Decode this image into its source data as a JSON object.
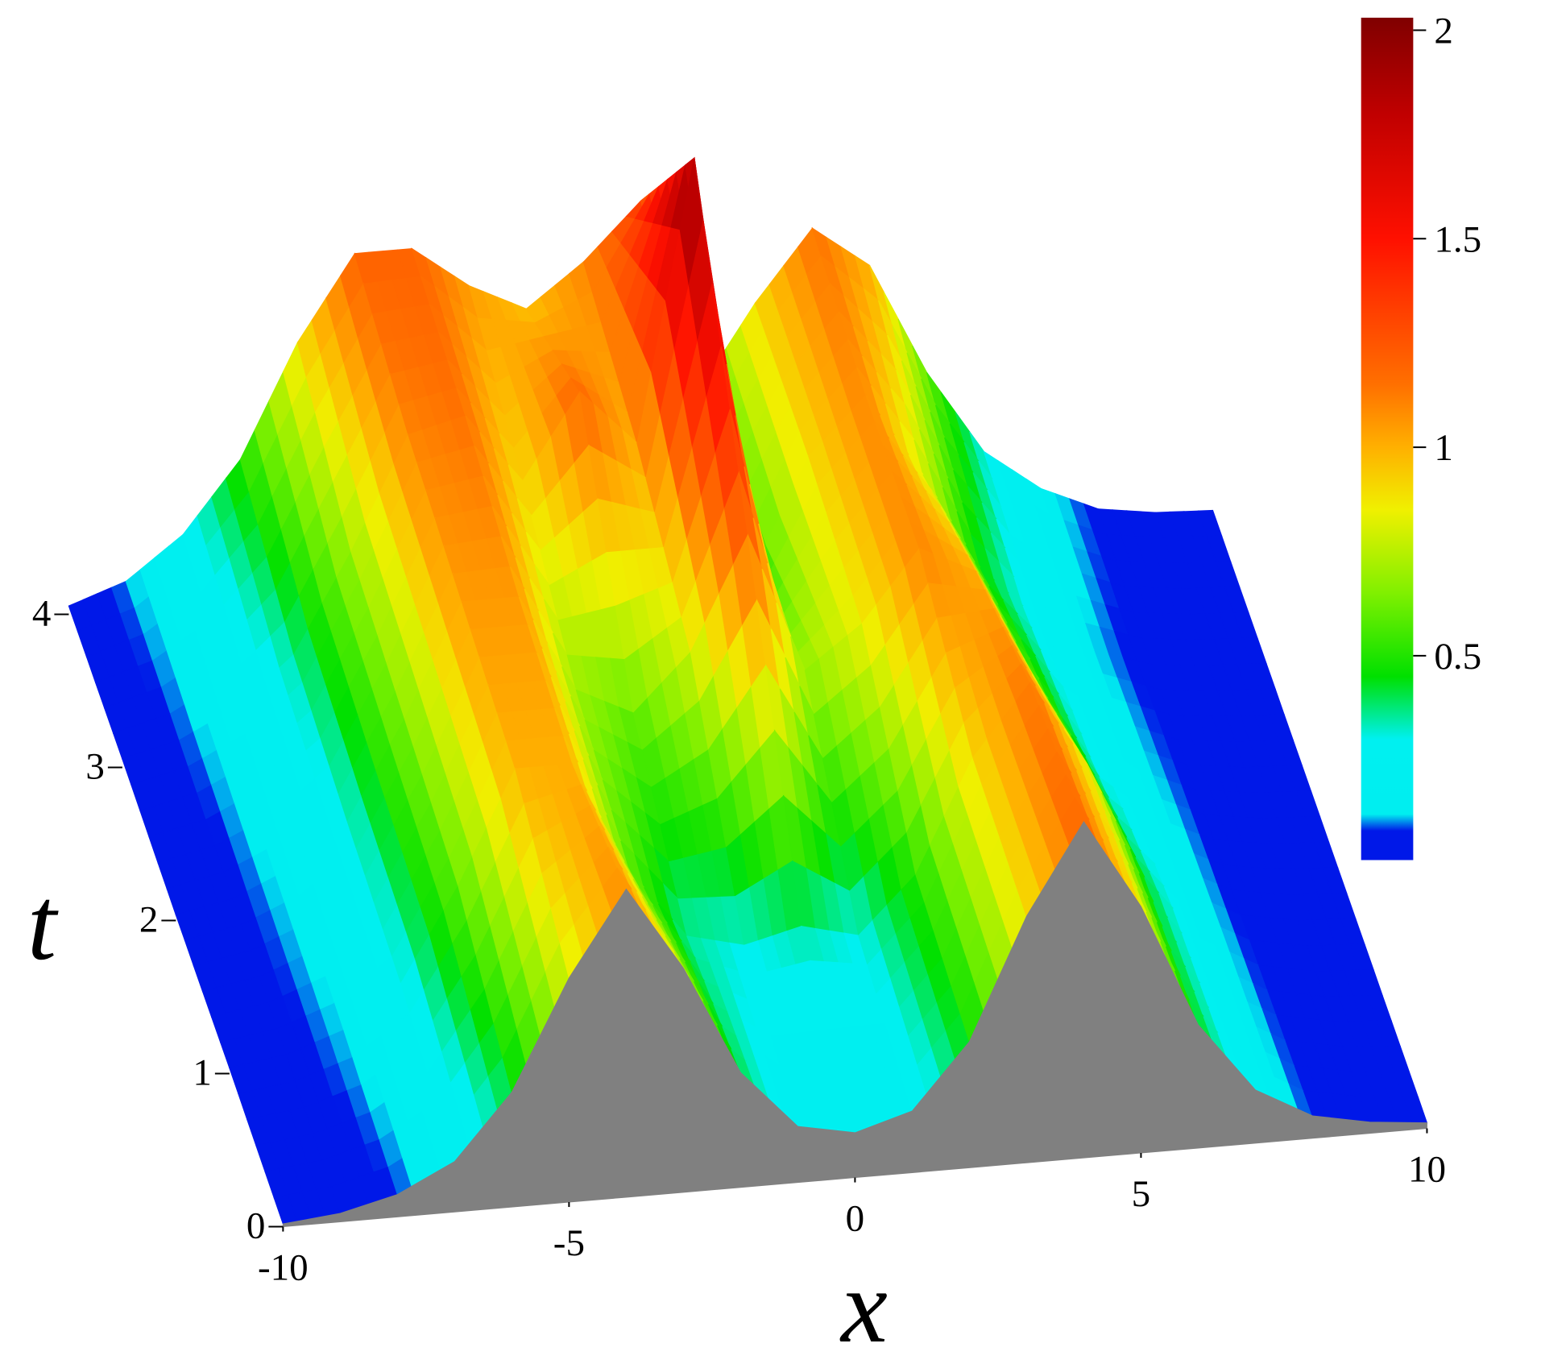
{
  "chart_data": {
    "type": "surface",
    "xlabel": "x",
    "ylabel": "t",
    "x": [
      -10,
      -9,
      -8,
      -7,
      -6,
      -5,
      -4,
      -3,
      -2,
      -1,
      0,
      1,
      2,
      3,
      4,
      5,
      6,
      7,
      8,
      9,
      10
    ],
    "t": [
      0,
      1,
      2,
      3,
      4
    ],
    "z": [
      [
        0.01,
        0.03,
        0.08,
        0.18,
        0.41,
        0.8,
        1.1,
        0.8,
        0.41,
        0.2,
        0.16,
        0.22,
        0.45,
        0.88,
        1.2,
        0.88,
        0.44,
        0.19,
        0.08,
        0.04,
        0.02
      ],
      [
        0.02,
        0.05,
        0.12,
        0.27,
        0.6,
        1.0,
        1.0,
        0.6,
        0.35,
        0.3,
        0.35,
        0.3,
        0.5,
        0.9,
        1.15,
        0.84,
        0.42,
        0.18,
        0.07,
        0.03,
        0.02
      ],
      [
        0.02,
        0.06,
        0.15,
        0.3,
        0.65,
        1.05,
        1.05,
        0.7,
        0.6,
        0.8,
        1.2,
        0.7,
        0.85,
        1.1,
        1.0,
        0.6,
        0.3,
        0.15,
        0.06,
        0.03,
        0.02
      ],
      [
        0.03,
        0.08,
        0.18,
        0.35,
        0.7,
        1.1,
        1.15,
        0.9,
        1.2,
        1.0,
        2.0,
        0.5,
        0.9,
        1.1,
        0.8,
        0.45,
        0.25,
        0.12,
        0.05,
        0.03,
        0.02
      ],
      [
        0.03,
        0.1,
        0.25,
        0.5,
        0.9,
        1.2,
        1.2,
        1.05,
        0.95,
        1.1,
        1.3,
        0.6,
        0.9,
        1.15,
        1.0,
        0.6,
        0.3,
        0.15,
        0.06,
        0.03,
        0.02
      ]
    ],
    "xlim": [
      -10,
      10
    ],
    "ylim": [
      0,
      4
    ],
    "xticks": [
      -10,
      -5,
      0,
      5,
      10
    ],
    "yticks": [
      0,
      1,
      2,
      3,
      4
    ],
    "side_color": "#808080",
    "colormap": [
      [
        0,
        "#0018e8"
      ],
      [
        0.08,
        "#0018e8"
      ],
      [
        0.12,
        "#00eef0"
      ],
      [
        0.3,
        "#00f0f0"
      ],
      [
        0.45,
        "#00e000"
      ],
      [
        0.65,
        "#80f000"
      ],
      [
        0.85,
        "#f0f000"
      ],
      [
        1.0,
        "#ffb000"
      ],
      [
        1.15,
        "#ff7000"
      ],
      [
        1.5,
        "#ff1000"
      ],
      [
        1.8,
        "#c00000"
      ],
      [
        2.05,
        "#800000"
      ]
    ],
    "colorbar": {
      "lim": [
        0.01,
        2.03
      ],
      "ticks": [
        0.5,
        1,
        1.5,
        2
      ]
    }
  }
}
